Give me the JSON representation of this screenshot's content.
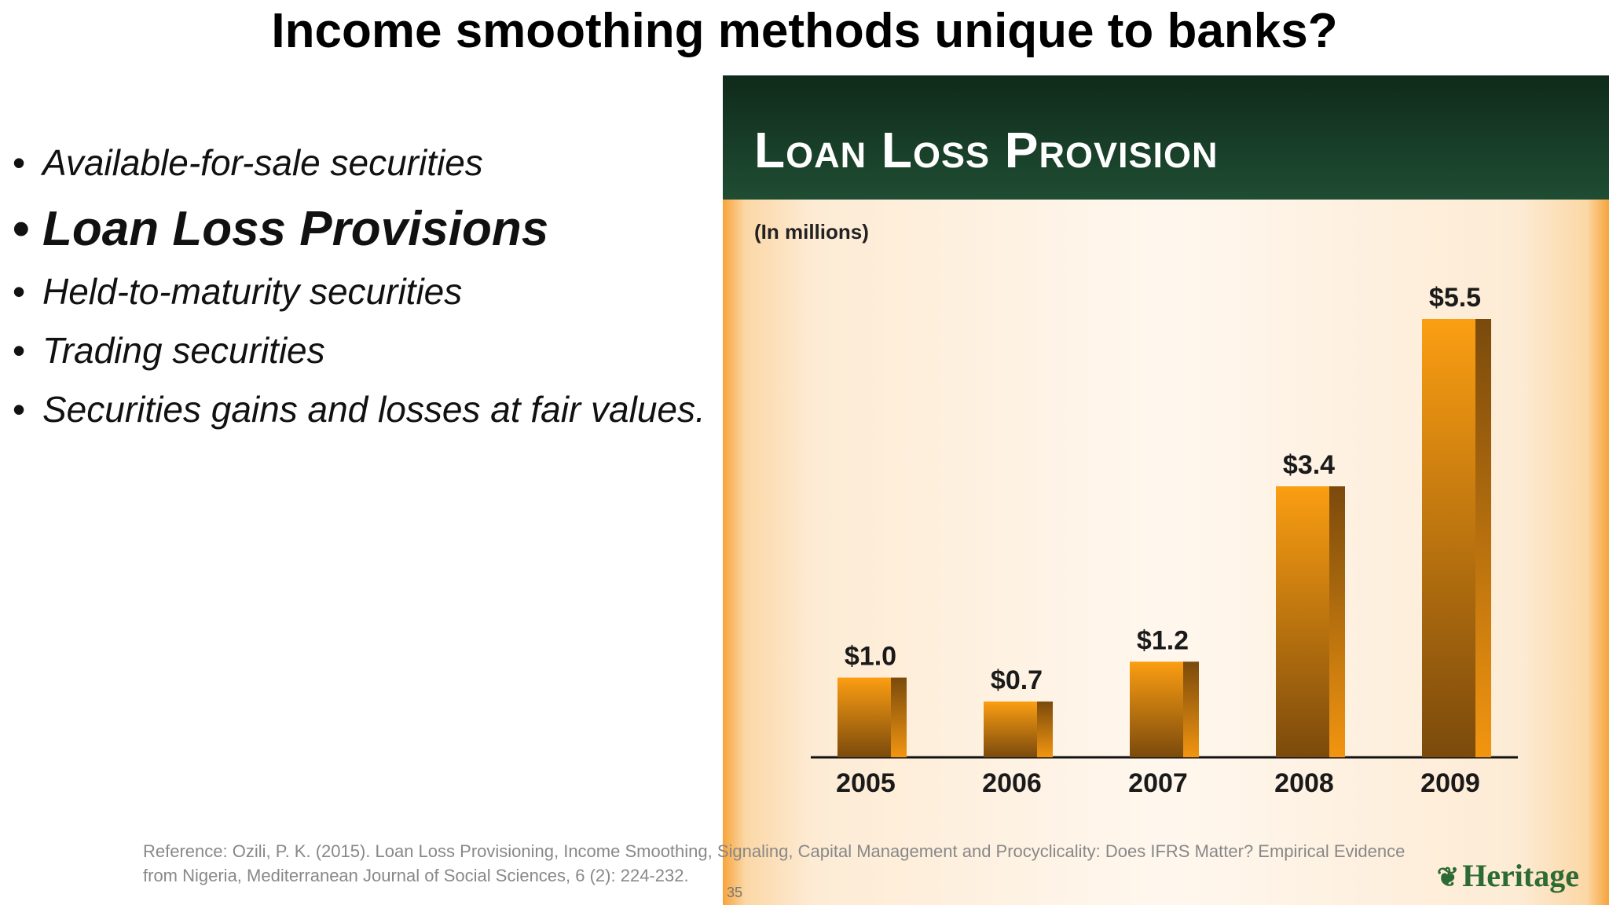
{
  "slide": {
    "title": "Income smoothing methods unique to banks?",
    "bullets": [
      "Available-for-sale securities",
      "Loan Loss Provisions",
      "Held-to-maturity securities",
      "Trading securities",
      "Securities gains and losses at fair values."
    ],
    "reference": "Reference: Ozili, P. K. (2015). Loan Loss Provisioning, Income Smoothing, Signaling, Capital Management and Procyclicality: Does IFRS Matter? Empirical Evidence from Nigeria, Mediterranean Journal of Social Sciences, 6 (2): 224-232.",
    "page_number": "35"
  },
  "logo": {
    "text": "Heritage",
    "icon": "leaf-icon"
  },
  "chart_data": {
    "type": "bar",
    "title": "Loan Loss Provision",
    "subtitle": "(In millions)",
    "categories": [
      "2005",
      "2006",
      "2007",
      "2008",
      "2009"
    ],
    "values": [
      1.0,
      0.7,
      1.2,
      3.4,
      5.5
    ],
    "data_labels": [
      "$1.0",
      "$0.7",
      "$1.2",
      "$3.4",
      "$5.5"
    ],
    "ylim": [
      0,
      5.5
    ],
    "grid": false,
    "colors": {
      "bar": "#f39a14",
      "bar_dark": "#7a4b0c",
      "header": "#1b4030",
      "axis": "#111111"
    }
  }
}
